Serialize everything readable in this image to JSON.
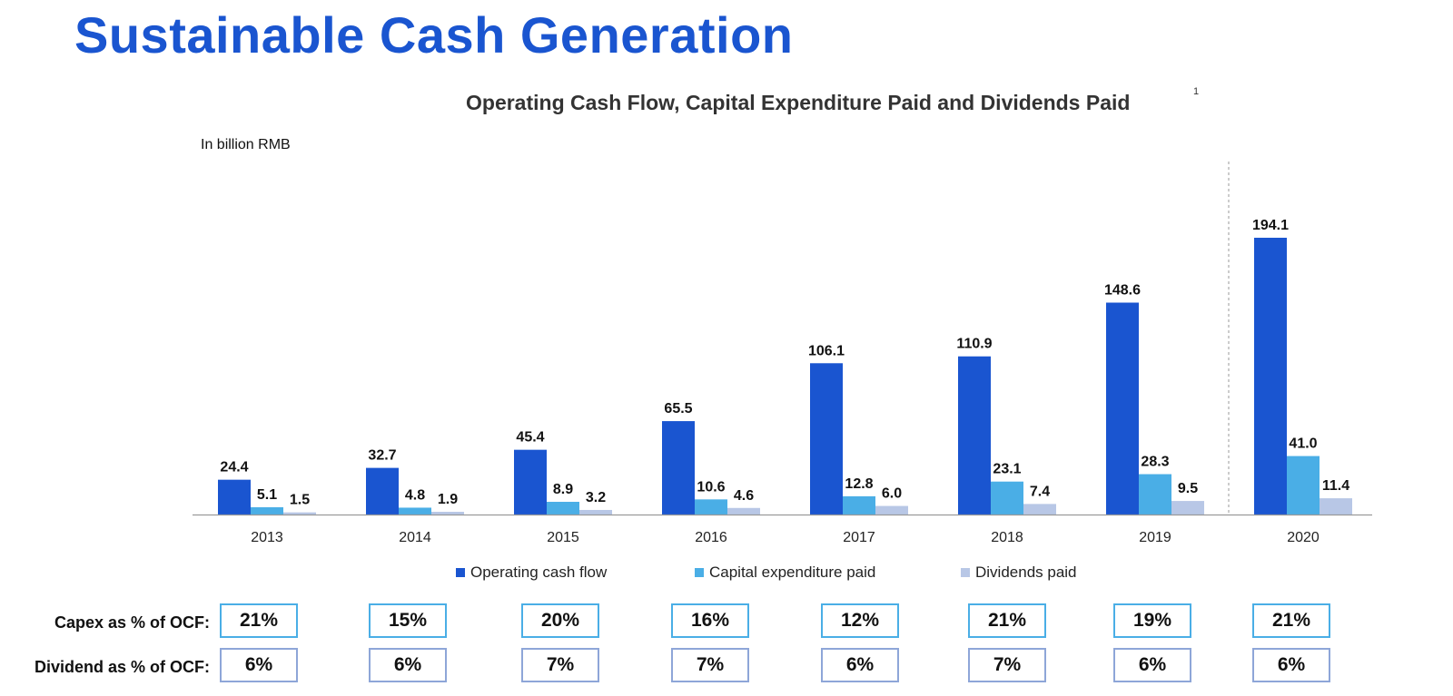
{
  "page": {
    "title": "Sustainable Cash Generation"
  },
  "chart_data": {
    "type": "bar",
    "title": "Operating Cash Flow, Capital Expenditure Paid and Dividends Paid",
    "title_footnote": "1",
    "unit_label": "In billion RMB",
    "categories": [
      "2013",
      "2014",
      "2015",
      "2016",
      "2017",
      "2018",
      "2019",
      "2020"
    ],
    "series": [
      {
        "name": "Operating cash flow",
        "color": "#1a55d0",
        "values": [
          24.4,
          32.7,
          45.4,
          65.5,
          106.1,
          110.9,
          148.6,
          194.1
        ],
        "labels": [
          "24.4",
          "32.7",
          "45.4",
          "65.5",
          "106.1",
          "110.9",
          "148.6",
          "194.1"
        ]
      },
      {
        "name": "Capital expenditure paid",
        "color": "#4aaee6",
        "values": [
          5.1,
          4.8,
          8.9,
          10.6,
          12.8,
          23.1,
          28.3,
          41.0
        ],
        "labels": [
          "5.1",
          "4.8",
          "8.9",
          "10.6",
          "12.8",
          "23.1",
          "28.3",
          "41.0"
        ]
      },
      {
        "name": "Dividends paid",
        "color": "#b8c7e6",
        "values": [
          1.5,
          1.9,
          3.2,
          4.6,
          6.0,
          7.4,
          9.5,
          11.4
        ],
        "labels": [
          "1.5",
          "1.9",
          "3.2",
          "4.6",
          "6.0",
          "7.4",
          "9.5",
          "11.4"
        ]
      }
    ],
    "ylim": [
      0,
      194.1
    ],
    "grid": false,
    "legend_placement": "bottom",
    "separator_before_category": "2020"
  },
  "ratios": {
    "capex_label": "Capex as % of OCF:",
    "dividend_label": "Dividend as % of OCF:",
    "capex": [
      "21%",
      "15%",
      "20%",
      "16%",
      "12%",
      "21%",
      "19%",
      "21%"
    ],
    "dividend": [
      "6%",
      "6%",
      "7%",
      "7%",
      "6%",
      "7%",
      "6%",
      "6%"
    ]
  }
}
